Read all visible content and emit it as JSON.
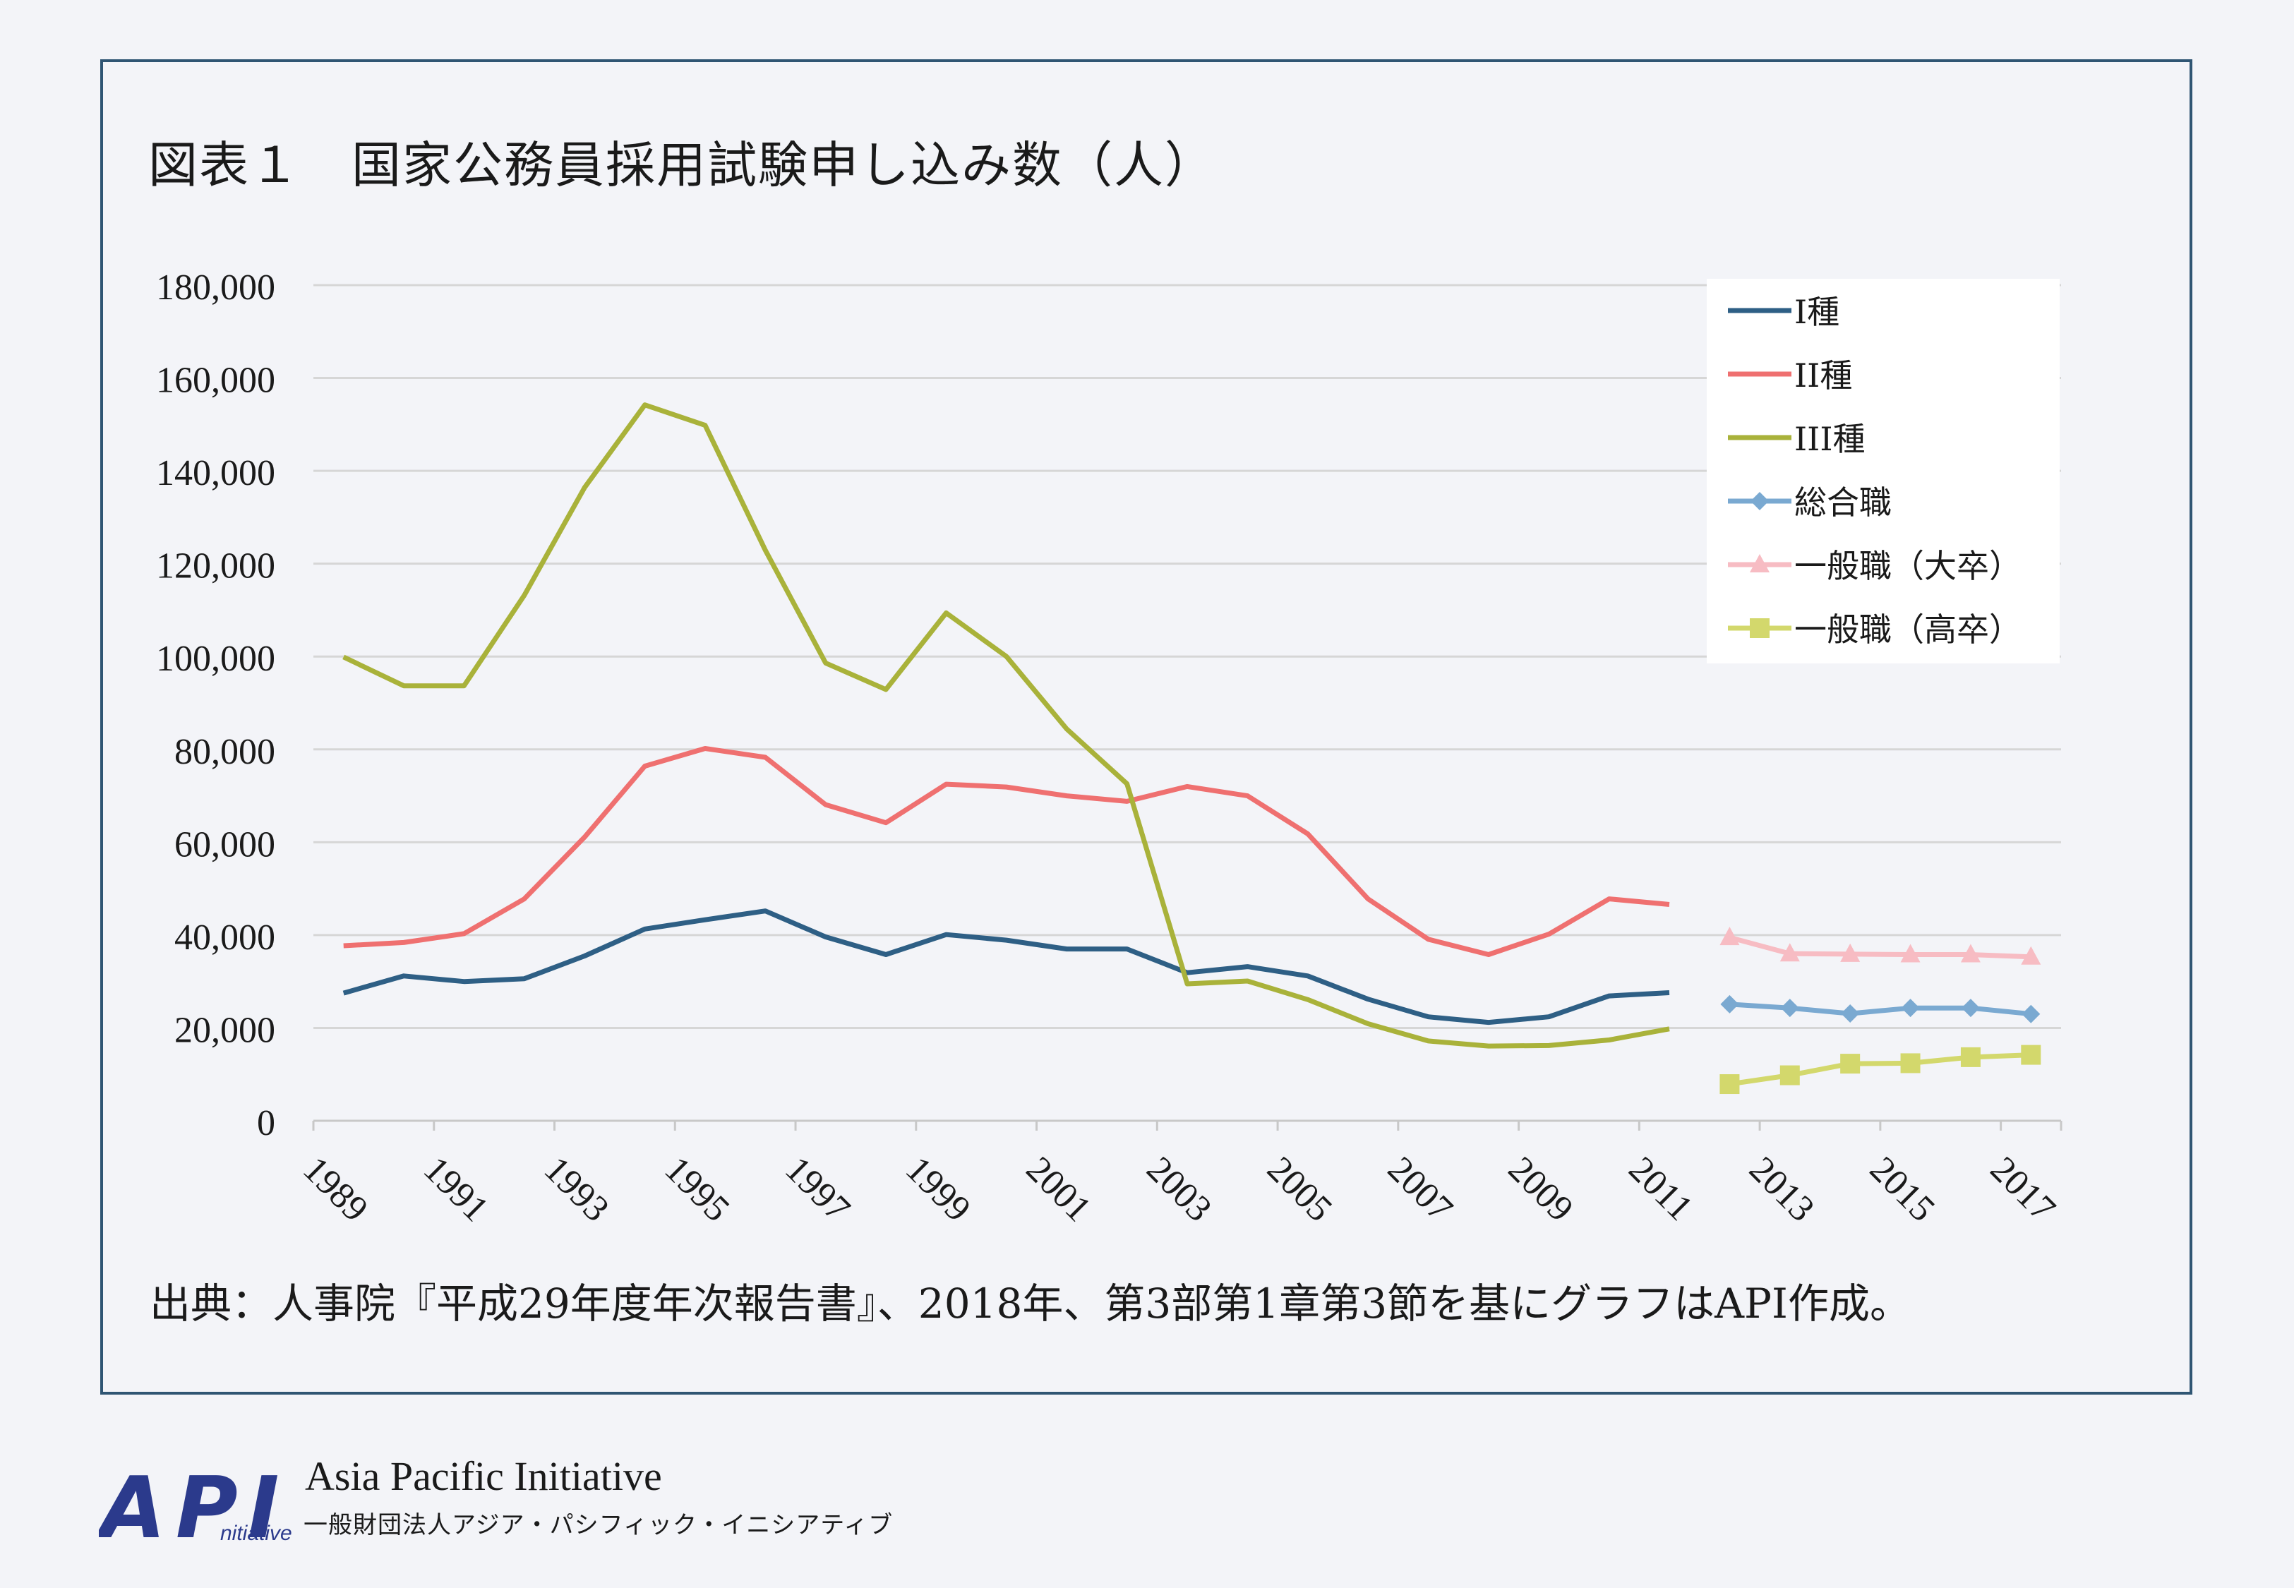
{
  "title": "図表１　国家公務員採用試験申し込み数（人）",
  "source_note": "出典：人事院『平成29年度年次報告書』、2018年、第3部第1章第3節を基にグラフはAPI作成。",
  "footer": {
    "logo_letters": "API",
    "logo_sub": "nitiative",
    "org_en": "Asia Pacific  Initiative",
    "org_ja": "一般財団法人アジア・パシフィック・イニシアティブ"
  },
  "colors": {
    "frame": "#2f5573",
    "grid": "#d6d6d6",
    "axis": "#c8c8c8",
    "logo": "#2b3a8c"
  },
  "chart_data": {
    "type": "line",
    "title": "図表１　国家公務員採用試験申し込み数（人）",
    "x": [
      1989,
      1990,
      1991,
      1992,
      1993,
      1994,
      1995,
      1996,
      1997,
      1998,
      1999,
      2000,
      2001,
      2002,
      2003,
      2004,
      2005,
      2006,
      2007,
      2008,
      2009,
      2010,
      2011,
      2012,
      2013,
      2014,
      2015,
      2016,
      2017
    ],
    "x_tick_labels": [
      "1989",
      "1991",
      "1993",
      "1995",
      "1997",
      "1999",
      "2001",
      "2003",
      "2005",
      "2007",
      "2009",
      "2011",
      "2013",
      "2015",
      "2017"
    ],
    "ylim": [
      0,
      180000
    ],
    "y_ticks": [
      0,
      20000,
      40000,
      60000,
      80000,
      100000,
      120000,
      140000,
      160000,
      180000
    ],
    "y_tick_labels": [
      "0",
      "20,000",
      "40,000",
      "60,000",
      "80,000",
      "100,000",
      "120,000",
      "140,000",
      "160,000",
      "180,000"
    ],
    "grid": true,
    "legend_position": "top-right",
    "series": [
      {
        "name": "I種",
        "color": "#2e5f85",
        "marker": "none",
        "values": [
          27500,
          31200,
          30000,
          30600,
          35500,
          41300,
          43300,
          45200,
          39600,
          35800,
          40100,
          38900,
          37000,
          37000,
          31900,
          33200,
          31200,
          26200,
          22400,
          21200,
          22400,
          26900,
          27600,
          null,
          null,
          null,
          null,
          null,
          null
        ]
      },
      {
        "name": "II種",
        "color": "#ef7070",
        "marker": "none",
        "values": [
          37700,
          38400,
          40300,
          47800,
          61100,
          76400,
          80200,
          78300,
          68100,
          64200,
          72500,
          71900,
          70000,
          68800,
          72000,
          70000,
          61800,
          47800,
          39100,
          35800,
          40200,
          47800,
          46600,
          null,
          null,
          null,
          null,
          null,
          null
        ]
      },
      {
        "name": "III種",
        "color": "#a9b23a",
        "marker": "none",
        "values": [
          99900,
          93700,
          93700,
          113200,
          136400,
          154200,
          149800,
          122900,
          98600,
          92900,
          109400,
          100000,
          84400,
          72600,
          29500,
          30100,
          26100,
          20900,
          17200,
          16100,
          16200,
          17400,
          19800,
          null,
          null,
          null,
          null,
          null,
          null
        ]
      },
      {
        "name": "総合職",
        "color": "#7aa9d1",
        "marker": "diamond",
        "values": [
          null,
          null,
          null,
          null,
          null,
          null,
          null,
          null,
          null,
          null,
          null,
          null,
          null,
          null,
          null,
          null,
          null,
          null,
          null,
          null,
          null,
          null,
          null,
          25100,
          24300,
          23100,
          24300,
          24300,
          23000
        ]
      },
      {
        "name": "一般職（大卒）",
        "color": "#f7bcc3",
        "marker": "triangle",
        "values": [
          null,
          null,
          null,
          null,
          null,
          null,
          null,
          null,
          null,
          null,
          null,
          null,
          null,
          null,
          null,
          null,
          null,
          null,
          null,
          null,
          null,
          null,
          null,
          39500,
          36000,
          35900,
          35800,
          35800,
          35300
        ]
      },
      {
        "name": "一般職（高卒）",
        "color": "#d3d86c",
        "marker": "square",
        "values": [
          null,
          null,
          null,
          null,
          null,
          null,
          null,
          null,
          null,
          null,
          null,
          null,
          null,
          null,
          null,
          null,
          null,
          null,
          null,
          null,
          null,
          null,
          null,
          7900,
          9800,
          12300,
          12400,
          13700,
          14200
        ]
      }
    ]
  }
}
